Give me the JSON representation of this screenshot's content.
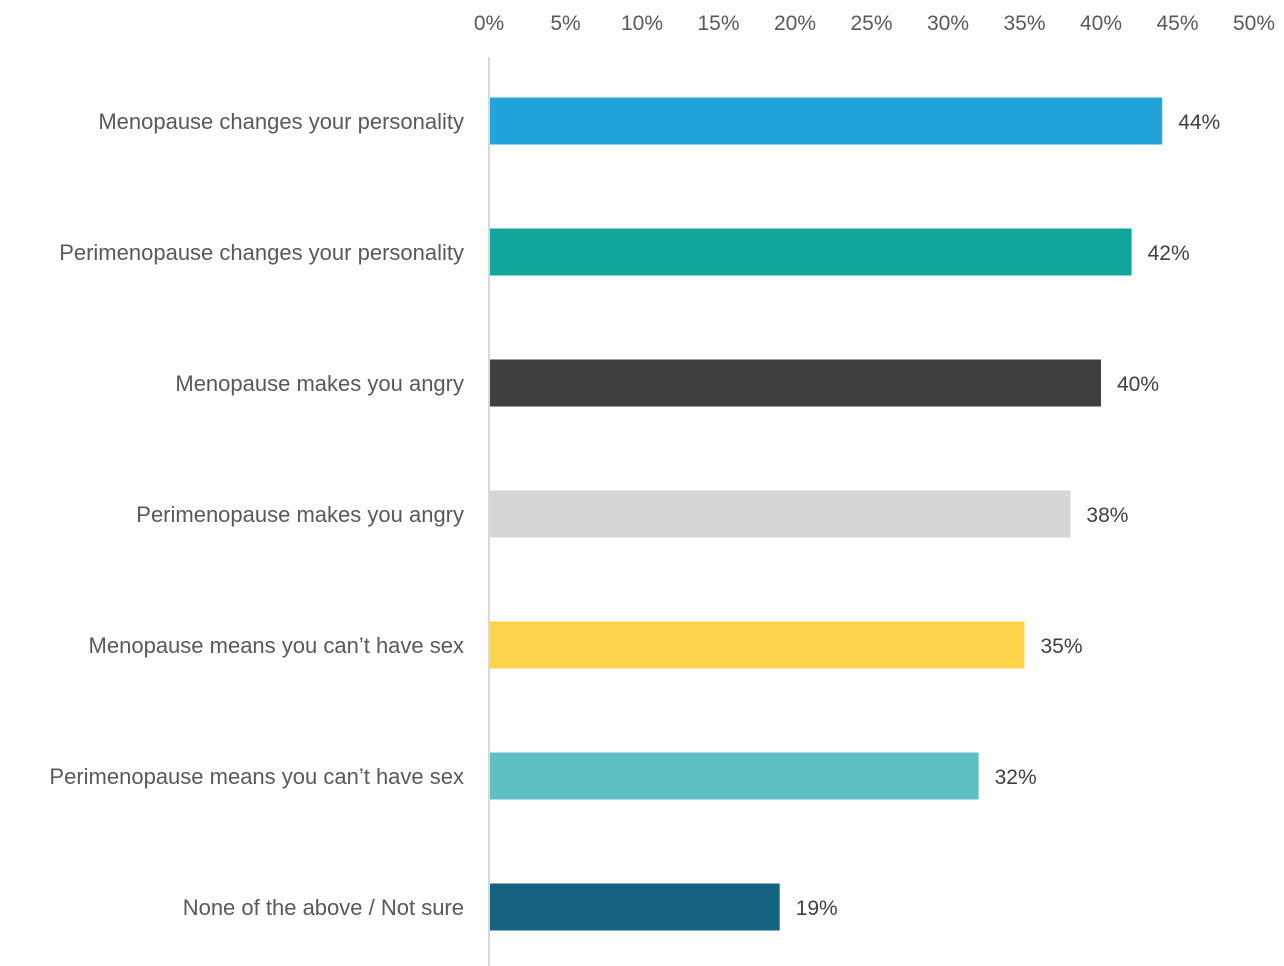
{
  "chart_data": {
    "type": "bar",
    "orientation": "horizontal",
    "title": "",
    "xlabel": "",
    "ylabel": "",
    "x_ticks": [
      "0%",
      "5%",
      "10%",
      "15%",
      "20%",
      "25%",
      "30%",
      "35%",
      "40%",
      "45%",
      "50%"
    ],
    "xlim": [
      0,
      50
    ],
    "x_axis_position": "top",
    "grid": false,
    "legend": "none",
    "categories": [
      "Menopause changes your personality",
      "Perimenopause changes your personality",
      "Menopause makes you angry",
      "Perimenopause makes you angry",
      "Menopause means you can’t have sex",
      "Perimenopause means you can’t have sex",
      "None of the above / Not sure"
    ],
    "values": [
      44,
      42,
      40,
      38,
      35,
      32,
      19
    ],
    "data_labels": [
      "44%",
      "42%",
      "40%",
      "38%",
      "35%",
      "32%",
      "19%"
    ],
    "colors": [
      "#22a3d9",
      "#11a59c",
      "#404040",
      "#d6d6d8",
      "#fcd34a",
      "#5fc0c4",
      "#156281"
    ]
  }
}
